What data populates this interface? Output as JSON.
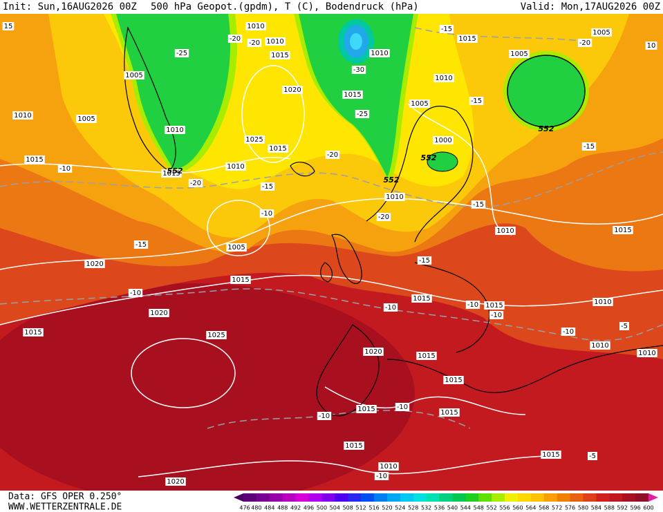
{
  "header": {
    "init": "Init: Sun,16AUG2026 00Z",
    "title": "500 hPa Geopot.(gpdm), T (C), Bodendruck (hPa)",
    "valid": "Valid: Mon,17AUG2026 00Z"
  },
  "footer": {
    "data": "Data: GFS OPER 0.250°",
    "site": "WWW.WETTERZENTRALE.DE"
  },
  "colorbar": {
    "labels": [
      476,
      480,
      484,
      488,
      492,
      496,
      500,
      504,
      508,
      512,
      516,
      520,
      524,
      528,
      532,
      536,
      540,
      544,
      548,
      552,
      556,
      560,
      564,
      568,
      572,
      576,
      580,
      584,
      588,
      592,
      596,
      600
    ],
    "colors": [
      "#4b0068",
      "#5c0078",
      "#780090",
      "#9800a8",
      "#b800c0",
      "#d800d8",
      "#b000f0",
      "#8000f0",
      "#5000f0",
      "#2828f0",
      "#0050f0",
      "#0080f0",
      "#00a8f0",
      "#00c8f0",
      "#00e0e0",
      "#00e0b0",
      "#00d080",
      "#00c850",
      "#20d020",
      "#60e000",
      "#a8ec00",
      "#f0f000",
      "#ffd800",
      "#ffc000",
      "#f8a000",
      "#f08000",
      "#e86010",
      "#e04018",
      "#d02020",
      "#c01820",
      "#a81020",
      "#901028",
      "#e0209c"
    ]
  },
  "map": {
    "pressure_labels": [
      "15",
      "1010",
      "1010",
      "1015",
      "1010",
      "1005",
      "1010",
      "1005",
      "1010",
      "1020",
      "1015",
      "1005",
      "1025",
      "1015",
      "1000",
      "1010",
      "1015",
      "1015",
      "1010",
      "1010",
      "1015",
      "1005",
      "1020",
      "1015",
      "1015",
      "1015",
      "1010",
      "1020",
      "1015",
      "1025",
      "1020",
      "1015",
      "1010",
      "1010",
      "1015",
      "1015",
      "1015",
      "1015",
      "1015",
      "1010",
      "1020",
      "1015",
      "1005",
      "1005",
      "1010",
      "10"
    ],
    "temperature_labels": [
      "-15",
      "-20",
      "-15",
      "-15",
      "-25",
      "-20",
      "-20",
      "-30",
      "-25",
      "-20",
      "-10",
      "-20",
      "-15",
      "-10",
      "-15",
      "-20",
      "-15",
      "-15",
      "-10",
      "-10",
      "-10",
      "-10",
      "-10",
      "-5",
      "-10",
      "-10",
      "-5",
      "-10"
    ],
    "height_labels": [
      "552",
      "552",
      "552",
      "552"
    ]
  }
}
